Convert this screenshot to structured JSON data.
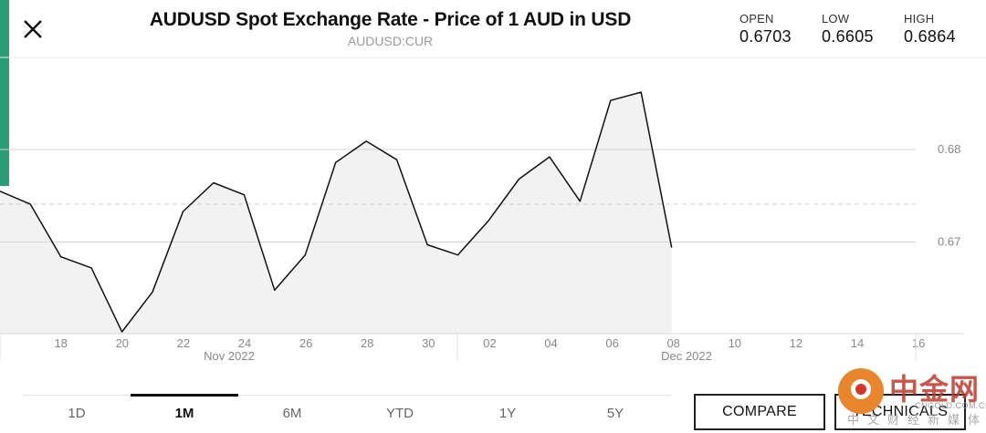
{
  "header": {
    "title": "AUDUSD Spot Exchange Rate - Price of 1 AUD in USD",
    "ticker": "AUDUSD:CUR"
  },
  "stats": [
    {
      "label": "OPEN",
      "value": "0.6703"
    },
    {
      "label": "LOW",
      "value": "0.6605"
    },
    {
      "label": "HIGH",
      "value": "0.6864"
    }
  ],
  "icons": {
    "close": "close-icon"
  },
  "range_tabs": [
    {
      "label": "1D",
      "active": false
    },
    {
      "label": "1M",
      "active": true
    },
    {
      "label": "6M",
      "active": false
    },
    {
      "label": "YTD",
      "active": false
    },
    {
      "label": "1Y",
      "active": false
    },
    {
      "label": "5Y",
      "active": false
    }
  ],
  "buttons": {
    "compare": "COMPARE",
    "technicals": "TECHNICALS"
  },
  "watermark": {
    "cn": "中金网",
    "en": "CNGOLD.COM.CN",
    "cn_sub": "中文财经新媒体"
  },
  "colors": {
    "accent": "#2a9c76",
    "line": "#111111",
    "fill": "#f2f2f2"
  },
  "chart_data": {
    "type": "area",
    "x": [
      "Nov 16",
      "Nov 17",
      "Nov 18",
      "Nov 19",
      "Nov 22",
      "Nov 23",
      "Nov 24",
      "Nov 25",
      "Nov 26",
      "Nov 29",
      "Nov 30",
      "Dec 01",
      "Dec 02",
      "Dec 03",
      "Dec 06",
      "Dec 07",
      "Dec 08",
      "Dec 09",
      "Dec 10",
      "Dec 13",
      "Dec 14",
      "Dec 15",
      "Dec 16"
    ],
    "values": [
      0.6755,
      0.6741,
      0.6684,
      0.6672,
      0.6603,
      0.6646,
      0.6733,
      0.6764,
      0.6751,
      0.6648,
      0.6686,
      0.6786,
      0.6809,
      0.6789,
      0.6697,
      0.6686,
      0.6723,
      0.6768,
      0.6792,
      0.6744,
      0.6853,
      0.6862,
      0.6694
    ],
    "x_ticks": [
      "18",
      "20",
      "22",
      "24",
      "26",
      "28",
      "30",
      "02",
      "04",
      "06",
      "08",
      "10",
      "12",
      "14",
      "16"
    ],
    "month_labels": [
      "Nov 2022",
      "Dec 2022"
    ],
    "y_ticks": [
      0.67,
      0.68
    ],
    "y_tick_labels": [
      "0.67",
      "0.68"
    ],
    "reference_line": 0.6741,
    "ylim": [
      0.66,
      0.69
    ],
    "grid": true
  }
}
